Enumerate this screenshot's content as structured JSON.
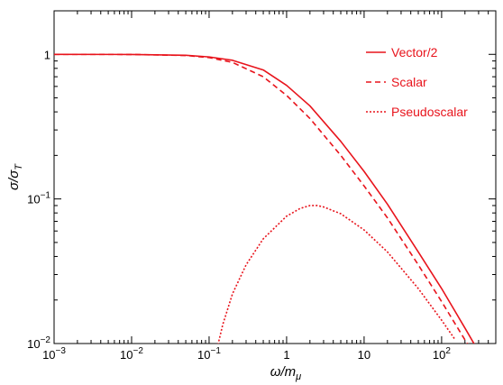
{
  "chart_data": {
    "type": "line",
    "x_scale": "log",
    "y_scale": "log",
    "xlim": [
      0.001,
      500
    ],
    "ylim": [
      0.01,
      2
    ],
    "xlabel": "ω/m_μ",
    "ylabel": "σ/σ_T",
    "x_ticks": [
      {
        "value": 0.001,
        "base": "10",
        "exp": "−3"
      },
      {
        "value": 0.01,
        "base": "10",
        "exp": "−2"
      },
      {
        "value": 0.1,
        "base": "10",
        "exp": "−1"
      },
      {
        "value": 1,
        "base": "1",
        "exp": ""
      },
      {
        "value": 10,
        "base": "10",
        "exp": ""
      },
      {
        "value": 100,
        "base": "10",
        "exp": "2"
      }
    ],
    "y_ticks": [
      {
        "value": 0.01,
        "base": "10",
        "exp": "−2"
      },
      {
        "value": 0.1,
        "base": "10",
        "exp": "−1"
      },
      {
        "value": 1,
        "base": "1",
        "exp": ""
      }
    ],
    "grid": false,
    "legend_position": "top-right",
    "colors": {
      "series": "#e8141c",
      "axis": "#000000"
    },
    "series": [
      {
        "name": "Vector/2",
        "style": "solid",
        "x": [
          0.001,
          0.01,
          0.05,
          0.1,
          0.2,
          0.5,
          1,
          2,
          5,
          10,
          20,
          50,
          100,
          200,
          300
        ],
        "y": [
          1.0,
          0.998,
          0.985,
          0.96,
          0.91,
          0.78,
          0.61,
          0.44,
          0.25,
          0.155,
          0.092,
          0.043,
          0.024,
          0.0128,
          0.0088
        ]
      },
      {
        "name": "Scalar",
        "style": "dashed",
        "x": [
          0.001,
          0.01,
          0.05,
          0.1,
          0.2,
          0.5,
          1,
          2,
          5,
          10,
          20,
          50,
          100,
          200,
          250
        ],
        "y": [
          1.0,
          0.998,
          0.982,
          0.95,
          0.88,
          0.7,
          0.52,
          0.36,
          0.2,
          0.123,
          0.074,
          0.035,
          0.0195,
          0.0106,
          0.0088
        ]
      },
      {
        "name": "Pseudoscalar",
        "style": "dotted",
        "x": [
          0.13,
          0.15,
          0.2,
          0.3,
          0.5,
          1,
          1.5,
          2,
          2.5,
          3,
          5,
          10,
          20,
          50,
          100,
          150
        ],
        "y": [
          0.0098,
          0.0135,
          0.022,
          0.035,
          0.053,
          0.076,
          0.086,
          0.09,
          0.09,
          0.088,
          0.079,
          0.061,
          0.043,
          0.024,
          0.0145,
          0.0106
        ]
      }
    ]
  }
}
